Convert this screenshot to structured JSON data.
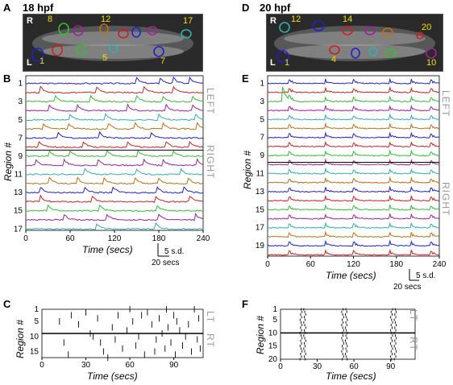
{
  "panel_a": {
    "letter": "A",
    "title": "18 hpf",
    "orient_top": "R",
    "orient_bottom": "L",
    "region_labels": [
      "8",
      "12",
      "17",
      "1",
      "5",
      "7"
    ]
  },
  "panel_d": {
    "letter": "D",
    "title": "20 hpf",
    "orient_top": "R",
    "orient_bottom": "L",
    "region_labels": [
      "12",
      "14",
      "20",
      "1",
      "4",
      "10"
    ]
  },
  "panel_b": {
    "letter": "B",
    "side_top": "LEFT",
    "side_bottom": "RIGHT",
    "scale_y": "5 s.d.",
    "scale_x": "20 secs"
  },
  "panel_e": {
    "letter": "E",
    "side_top": "LEFT",
    "side_bottom": "RIGHT",
    "scale_y": "5 s.d.",
    "scale_x": "20 secs"
  },
  "panel_c": {
    "letter": "C",
    "side_top": "LT",
    "side_bottom": "RT"
  },
  "panel_f": {
    "letter": "F",
    "side_top": "LT",
    "side_bottom": "RT"
  },
  "trace_colors": [
    "#2020d0",
    "#d02020",
    "#30c030",
    "#a020a0",
    "#30b0b0",
    "#c07010"
  ],
  "chart_data": [
    {
      "type": "line",
      "panel": "B",
      "n_traces": 17,
      "xlabel": "Time (secs)",
      "ylabel": "Region #",
      "xticks": [
        0,
        60,
        120,
        180,
        240
      ],
      "xlim": [
        0,
        240
      ],
      "yticks": [
        1,
        3,
        5,
        7,
        9,
        11,
        13,
        15,
        17
      ],
      "event_times": [
        [
          150,
          182,
          200,
          222
        ],
        [
          20,
          96,
          160,
          200
        ],
        [
          40,
          88,
          150,
          186,
          226
        ],
        [
          32,
          70,
          138,
          190,
          226
        ],
        [
          60,
          108,
          180,
          230
        ],
        [
          24,
          58,
          112,
          148,
          186,
          232
        ],
        [
          44,
          100,
          170
        ],
        [
          18,
          78,
          138,
          190,
          222
        ],
        [
          32,
          60,
          110,
          152,
          200
        ],
        [
          14,
          52,
          98,
          160,
          186,
          232
        ],
        [
          80,
          150,
          210
        ],
        [
          32,
          70,
          106,
          148,
          180,
          220
        ],
        [
          20,
          80,
          118,
          178,
          214
        ],
        [
          20,
          90,
          176,
          222
        ],
        [
          30,
          100,
          178
        ],
        [
          52,
          110,
          180,
          230
        ],
        [
          96,
          176
        ]
      ]
    },
    {
      "type": "line",
      "panel": "E",
      "n_traces": 20,
      "xlabel": "Time (secs)",
      "ylabel": "Region #",
      "xticks": [
        0,
        60,
        120,
        180,
        240
      ],
      "xlim": [
        0,
        240
      ],
      "yticks": [
        1,
        3,
        5,
        7,
        9,
        11,
        13,
        15,
        17,
        19
      ],
      "burst_times": [
        30,
        80,
        120,
        170,
        200,
        228
      ],
      "events": [
        {
          "trace": 3,
          "time": 20,
          "amplitude": 4
        }
      ]
    },
    {
      "type": "scatter",
      "panel": "C",
      "marker": "tick",
      "xlabel": "Time (secs)",
      "ylabel": "Region #",
      "xticks": [
        0,
        30,
        60,
        90
      ],
      "xlim": [
        0,
        110
      ],
      "yticks": [
        1,
        5,
        10,
        15
      ],
      "ylim": [
        1,
        17
      ],
      "divider_region": 9,
      "events": [
        [
          20,
          3
        ],
        [
          25,
          6
        ],
        [
          30,
          2
        ],
        [
          33,
          9
        ],
        [
          38,
          4
        ],
        [
          40,
          12
        ],
        [
          42,
          15
        ],
        [
          48,
          7
        ],
        [
          50,
          11
        ],
        [
          52,
          3
        ],
        [
          55,
          14
        ],
        [
          58,
          8
        ],
        [
          62,
          5
        ],
        [
          64,
          13
        ],
        [
          66,
          10
        ],
        [
          70,
          16
        ],
        [
          72,
          2
        ],
        [
          75,
          6
        ],
        [
          78,
          11
        ],
        [
          80,
          4
        ],
        [
          82,
          9
        ],
        [
          84,
          14
        ],
        [
          86,
          7
        ],
        [
          88,
          12
        ],
        [
          90,
          3
        ],
        [
          91,
          16
        ],
        [
          92,
          5
        ],
        [
          94,
          8
        ],
        [
          96,
          13
        ],
        [
          98,
          10
        ],
        [
          100,
          6
        ],
        [
          102,
          15
        ],
        [
          104,
          1
        ],
        [
          106,
          11
        ],
        [
          107,
          4
        ],
        [
          108,
          14
        ],
        [
          12,
          5
        ],
        [
          15,
          12
        ],
        [
          18,
          16
        ],
        [
          60,
          1
        ],
        [
          45,
          17
        ],
        [
          35,
          10
        ],
        [
          68,
          3
        ],
        [
          77,
          15
        ],
        [
          85,
          1
        ]
      ]
    },
    {
      "type": "scatter",
      "panel": "F",
      "marker": "tick",
      "xlabel": "Time (secs)",
      "ylabel": "Region #",
      "xticks": [
        0,
        30,
        60,
        90
      ],
      "xlim": [
        0,
        110
      ],
      "yticks": [
        1,
        5,
        10,
        15,
        20
      ],
      "ylim": [
        1,
        20
      ],
      "divider_region": 10,
      "burst_times": [
        16,
        19,
        50,
        53,
        90,
        93
      ]
    }
  ]
}
